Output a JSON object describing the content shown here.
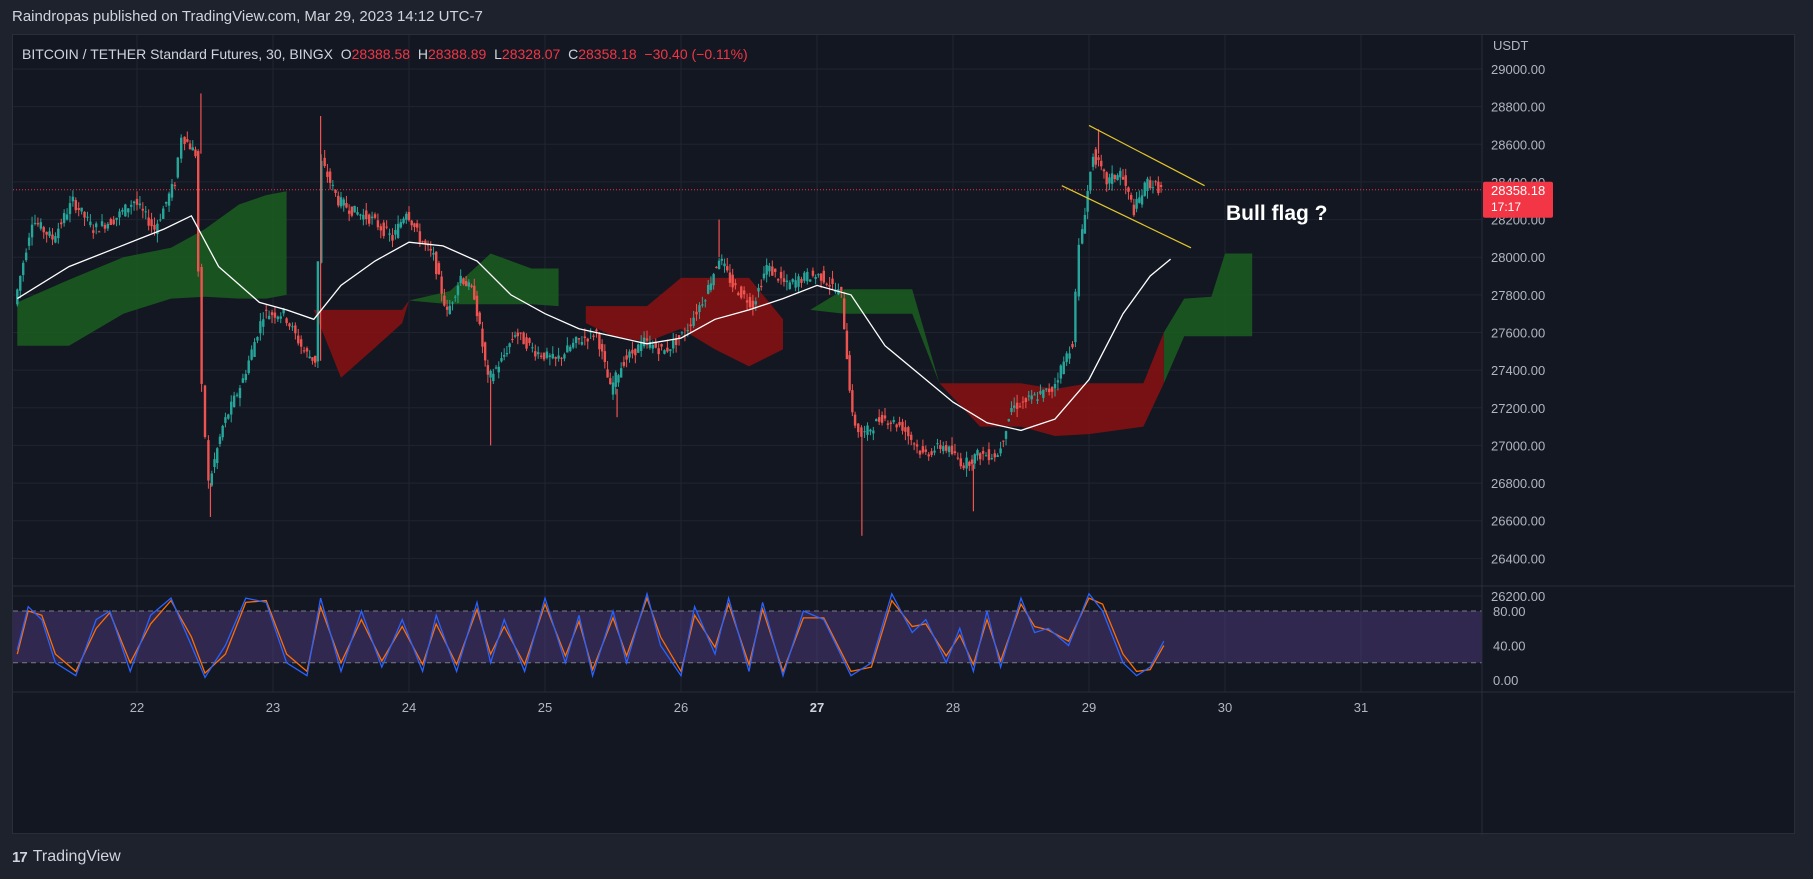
{
  "header": {
    "publisher_line": "Raindropas published on TradingView.com, Mar 29, 2023 14:12 UTC-7"
  },
  "legend": {
    "symbol": "BITCOIN / TETHER Standard Futures, 30, BINGX",
    "o_label": "O",
    "o_value": "28388.58",
    "h_label": "H",
    "h_value": "28388.89",
    "l_label": "L",
    "l_value": "28328.07",
    "c_label": "C",
    "c_value": "28358.18",
    "change": "−30.40 (−0.11%)"
  },
  "price_tag": {
    "value": "28358.18",
    "countdown": "17:17"
  },
  "annotation": "Bull flag ?",
  "footer": {
    "brand": "TradingView",
    "logo_glyph": "17"
  },
  "colors": {
    "up": "#26a69a",
    "down": "#ef5350",
    "cloud_bull": "#1b5e20",
    "cloud_bear": "#8b1111",
    "ma": "#ffffff",
    "flag": "#e3c72b",
    "stoch_k": "#2962ff",
    "stoch_d": "#ff6d00",
    "stoch_band": "#7e57c2",
    "price_tag": "#f23645"
  },
  "chart_data": {
    "type": "candlestick",
    "currency_label": "USDT",
    "x_ticks": [
      "22",
      "23",
      "24",
      "25",
      "26",
      "27",
      "28",
      "29",
      "30",
      "31"
    ],
    "bold_x_tick": "27",
    "y_ticks": [
      26200,
      26400,
      26600,
      26800,
      27000,
      27200,
      27400,
      27600,
      27800,
      28000,
      28200,
      28400,
      28600,
      28800,
      29000
    ],
    "ylim": [
      26000,
      29200
    ],
    "last_price": 28358.18,
    "price_path": [
      [
        21.12,
        27750
      ],
      [
        21.25,
        28200
      ],
      [
        21.4,
        28100
      ],
      [
        21.55,
        28300
      ],
      [
        21.7,
        28150
      ],
      [
        21.85,
        28200
      ],
      [
        22.0,
        28300
      ],
      [
        22.15,
        28150
      ],
      [
        22.3,
        28400
      ],
      [
        22.35,
        28650
      ],
      [
        22.45,
        28550
      ],
      [
        22.5,
        27300
      ],
      [
        22.55,
        26800
      ],
      [
        22.65,
        27100
      ],
      [
        22.8,
        27350
      ],
      [
        22.95,
        27700
      ],
      [
        23.1,
        27700
      ],
      [
        23.25,
        27500
      ],
      [
        23.33,
        27450
      ],
      [
        23.38,
        28500
      ],
      [
        23.5,
        28300
      ],
      [
        23.6,
        28250
      ],
      [
        23.75,
        28200
      ],
      [
        23.9,
        28100
      ],
      [
        24.0,
        28250
      ],
      [
        24.1,
        28100
      ],
      [
        24.2,
        28000
      ],
      [
        24.3,
        27700
      ],
      [
        24.4,
        27900
      ],
      [
        24.5,
        27800
      ],
      [
        24.6,
        27350
      ],
      [
        24.7,
        27450
      ],
      [
        24.8,
        27600
      ],
      [
        24.95,
        27500
      ],
      [
        25.1,
        27450
      ],
      [
        25.25,
        27550
      ],
      [
        25.4,
        27600
      ],
      [
        25.5,
        27300
      ],
      [
        25.6,
        27450
      ],
      [
        25.75,
        27550
      ],
      [
        25.9,
        27500
      ],
      [
        26.05,
        27600
      ],
      [
        26.2,
        27800
      ],
      [
        26.3,
        28000
      ],
      [
        26.4,
        27850
      ],
      [
        26.55,
        27750
      ],
      [
        26.65,
        27950
      ],
      [
        26.8,
        27850
      ],
      [
        26.95,
        27900
      ],
      [
        27.05,
        27900
      ],
      [
        27.2,
        27800
      ],
      [
        27.28,
        27150
      ],
      [
        27.35,
        27050
      ],
      [
        27.5,
        27150
      ],
      [
        27.65,
        27100
      ],
      [
        27.8,
        26950
      ],
      [
        27.95,
        27000
      ],
      [
        28.1,
        26900
      ],
      [
        28.2,
        26950
      ],
      [
        28.35,
        26950
      ],
      [
        28.45,
        27200
      ],
      [
        28.6,
        27250
      ],
      [
        28.75,
        27300
      ],
      [
        28.9,
        27550
      ],
      [
        28.95,
        28050
      ],
      [
        29.05,
        28550
      ],
      [
        29.15,
        28400
      ],
      [
        29.25,
        28450
      ],
      [
        29.35,
        28250
      ],
      [
        29.45,
        28400
      ],
      [
        29.55,
        28360
      ]
    ],
    "price_extremes": [
      {
        "x": 22.47,
        "y": 28870,
        "kind": "high"
      },
      {
        "x": 22.54,
        "y": 26620,
        "kind": "low"
      },
      {
        "x": 23.35,
        "y": 28750,
        "kind": "high"
      },
      {
        "x": 24.6,
        "y": 27000,
        "kind": "low"
      },
      {
        "x": 25.53,
        "y": 27150,
        "kind": "low"
      },
      {
        "x": 26.28,
        "y": 28200,
        "kind": "high"
      },
      {
        "x": 27.33,
        "y": 26520,
        "kind": "low"
      },
      {
        "x": 28.15,
        "y": 26650,
        "kind": "low"
      },
      {
        "x": 29.07,
        "y": 28680,
        "kind": "high"
      }
    ],
    "moving_average": [
      [
        21.12,
        27780
      ],
      [
        21.5,
        27950
      ],
      [
        21.85,
        28050
      ],
      [
        22.2,
        28150
      ],
      [
        22.4,
        28220
      ],
      [
        22.6,
        27950
      ],
      [
        22.9,
        27760
      ],
      [
        23.1,
        27720
      ],
      [
        23.3,
        27670
      ],
      [
        23.5,
        27850
      ],
      [
        23.75,
        27980
      ],
      [
        24.0,
        28080
      ],
      [
        24.25,
        28060
      ],
      [
        24.5,
        27980
      ],
      [
        24.75,
        27800
      ],
      [
        25.0,
        27700
      ],
      [
        25.25,
        27620
      ],
      [
        25.5,
        27580
      ],
      [
        25.75,
        27540
      ],
      [
        26.0,
        27570
      ],
      [
        26.25,
        27670
      ],
      [
        26.5,
        27720
      ],
      [
        26.75,
        27780
      ],
      [
        27.0,
        27850
      ],
      [
        27.25,
        27800
      ],
      [
        27.5,
        27530
      ],
      [
        27.75,
        27380
      ],
      [
        28.0,
        27230
      ],
      [
        28.25,
        27120
      ],
      [
        28.5,
        27080
      ],
      [
        28.75,
        27140
      ],
      [
        29.0,
        27350
      ],
      [
        29.25,
        27700
      ],
      [
        29.45,
        27900
      ],
      [
        29.6,
        27990
      ]
    ],
    "ichimoku_cloud": {
      "upper": [
        [
          21.12,
          27760
        ],
        [
          21.5,
          27880
        ],
        [
          21.9,
          28000
        ],
        [
          22.25,
          28050
        ],
        [
          22.5,
          28150
        ],
        [
          22.75,
          28280
        ],
        [
          22.95,
          28330
        ],
        [
          23.1,
          28350
        ],
        [
          23.3,
          27720
        ],
        [
          23.5,
          27720
        ],
        [
          23.75,
          27720
        ],
        [
          23.95,
          27720
        ],
        [
          24.0,
          27770
        ],
        [
          24.3,
          27820
        ],
        [
          24.6,
          28020
        ],
        [
          24.9,
          27940
        ],
        [
          25.1,
          27940
        ],
        [
          25.3,
          27740
        ],
        [
          25.5,
          27740
        ],
        [
          25.75,
          27740
        ],
        [
          26.0,
          27890
        ],
        [
          26.25,
          27890
        ],
        [
          26.5,
          27890
        ],
        [
          26.75,
          27670
        ],
        [
          26.95,
          27720
        ],
        [
          27.2,
          27830
        ],
        [
          27.45,
          27830
        ],
        [
          27.7,
          27830
        ],
        [
          27.9,
          27330
        ],
        [
          28.2,
          27330
        ],
        [
          28.5,
          27330
        ],
        [
          28.75,
          27300
        ],
        [
          29.0,
          27330
        ],
        [
          29.2,
          27330
        ],
        [
          29.4,
          27330
        ],
        [
          29.55,
          27600
        ],
        [
          29.7,
          27780
        ],
        [
          29.9,
          27790
        ],
        [
          30.0,
          28020
        ],
        [
          30.2,
          28020
        ]
      ],
      "lower": [
        [
          21.12,
          27530
        ],
        [
          21.5,
          27530
        ],
        [
          21.9,
          27700
        ],
        [
          22.25,
          27780
        ],
        [
          22.5,
          27790
        ],
        [
          22.75,
          27780
        ],
        [
          22.95,
          27780
        ],
        [
          23.1,
          27800
        ],
        [
          23.3,
          27720
        ],
        [
          23.5,
          27360
        ],
        [
          23.75,
          27520
        ],
        [
          23.95,
          27650
        ],
        [
          24.0,
          27770
        ],
        [
          24.3,
          27750
        ],
        [
          24.6,
          27750
        ],
        [
          24.9,
          27750
        ],
        [
          25.1,
          27740
        ],
        [
          25.3,
          27650
        ],
        [
          25.5,
          27580
        ],
        [
          25.75,
          27550
        ],
        [
          26.0,
          27620
        ],
        [
          26.25,
          27510
        ],
        [
          26.5,
          27420
        ],
        [
          26.75,
          27510
        ],
        [
          26.95,
          27720
        ],
        [
          27.2,
          27700
        ],
        [
          27.45,
          27700
        ],
        [
          27.7,
          27700
        ],
        [
          27.9,
          27330
        ],
        [
          28.2,
          27100
        ],
        [
          28.5,
          27100
        ],
        [
          28.75,
          27050
        ],
        [
          29.0,
          27060
        ],
        [
          29.2,
          27080
        ],
        [
          29.4,
          27100
        ],
        [
          29.55,
          27330
        ],
        [
          29.7,
          27580
        ],
        [
          29.9,
          27580
        ],
        [
          30.0,
          27580
        ],
        [
          30.2,
          27580
        ]
      ],
      "bull_segments": [
        [
          21.12,
          23.2
        ],
        [
          24.0,
          25.2
        ],
        [
          26.9,
          27.9
        ],
        [
          29.55,
          30.2
        ]
      ],
      "bear_segments": [
        [
          23.3,
          24.0
        ],
        [
          25.2,
          26.9
        ],
        [
          27.9,
          29.55
        ]
      ]
    },
    "bull_flag_lines": [
      {
        "from": [
          29.0,
          28700
        ],
        "to": [
          29.85,
          28380
        ]
      },
      {
        "from": [
          28.8,
          28380
        ],
        "to": [
          29.75,
          28050
        ]
      }
    ],
    "stochastic": {
      "y_ticks": [
        0,
        40,
        80
      ],
      "ylim": [
        -10,
        120
      ],
      "band": [
        20,
        80
      ],
      "k_path": [
        [
          21.12,
          35
        ],
        [
          21.2,
          85
        ],
        [
          21.3,
          70
        ],
        [
          21.4,
          20
        ],
        [
          21.55,
          5
        ],
        [
          21.7,
          70
        ],
        [
          21.8,
          80
        ],
        [
          21.95,
          10
        ],
        [
          22.1,
          75
        ],
        [
          22.25,
          95
        ],
        [
          22.4,
          40
        ],
        [
          22.5,
          3
        ],
        [
          22.65,
          40
        ],
        [
          22.8,
          95
        ],
        [
          22.95,
          90
        ],
        [
          23.1,
          20
        ],
        [
          23.25,
          5
        ],
        [
          23.35,
          95
        ],
        [
          23.5,
          10
        ],
        [
          23.65,
          80
        ],
        [
          23.8,
          15
        ],
        [
          23.95,
          70
        ],
        [
          24.1,
          10
        ],
        [
          24.2,
          75
        ],
        [
          24.35,
          10
        ],
        [
          24.5,
          90
        ],
        [
          24.6,
          20
        ],
        [
          24.7,
          70
        ],
        [
          24.85,
          10
        ],
        [
          25.0,
          95
        ],
        [
          25.15,
          20
        ],
        [
          25.25,
          75
        ],
        [
          25.35,
          5
        ],
        [
          25.5,
          80
        ],
        [
          25.6,
          20
        ],
        [
          25.75,
          100
        ],
        [
          25.85,
          40
        ],
        [
          26.0,
          5
        ],
        [
          26.1,
          85
        ],
        [
          26.25,
          30
        ],
        [
          26.35,
          95
        ],
        [
          26.5,
          10
        ],
        [
          26.6,
          90
        ],
        [
          26.75,
          5
        ],
        [
          26.9,
          80
        ],
        [
          27.05,
          70
        ],
        [
          27.25,
          5
        ],
        [
          27.4,
          20
        ],
        [
          27.55,
          100
        ],
        [
          27.7,
          55
        ],
        [
          27.8,
          70
        ],
        [
          27.95,
          20
        ],
        [
          28.05,
          60
        ],
        [
          28.15,
          10
        ],
        [
          28.25,
          80
        ],
        [
          28.35,
          15
        ],
        [
          28.5,
          95
        ],
        [
          28.6,
          55
        ],
        [
          28.7,
          60
        ],
        [
          28.85,
          40
        ],
        [
          29.0,
          100
        ],
        [
          29.1,
          80
        ],
        [
          29.25,
          20
        ],
        [
          29.35,
          5
        ],
        [
          29.45,
          15
        ],
        [
          29.55,
          45
        ]
      ],
      "d_path": [
        [
          21.12,
          30
        ],
        [
          21.2,
          80
        ],
        [
          21.3,
          75
        ],
        [
          21.4,
          30
        ],
        [
          21.55,
          10
        ],
        [
          21.7,
          60
        ],
        [
          21.8,
          78
        ],
        [
          21.95,
          20
        ],
        [
          22.1,
          65
        ],
        [
          22.25,
          92
        ],
        [
          22.4,
          50
        ],
        [
          22.5,
          8
        ],
        [
          22.65,
          30
        ],
        [
          22.8,
          90
        ],
        [
          22.95,
          92
        ],
        [
          23.1,
          30
        ],
        [
          23.25,
          10
        ],
        [
          23.35,
          85
        ],
        [
          23.5,
          20
        ],
        [
          23.65,
          70
        ],
        [
          23.8,
          22
        ],
        [
          23.95,
          62
        ],
        [
          24.1,
          18
        ],
        [
          24.2,
          65
        ],
        [
          24.35,
          18
        ],
        [
          24.5,
          82
        ],
        [
          24.6,
          30
        ],
        [
          24.7,
          62
        ],
        [
          24.85,
          18
        ],
        [
          25.0,
          88
        ],
        [
          25.15,
          28
        ],
        [
          25.25,
          68
        ],
        [
          25.35,
          12
        ],
        [
          25.5,
          72
        ],
        [
          25.6,
          28
        ],
        [
          25.75,
          95
        ],
        [
          25.85,
          50
        ],
        [
          26.0,
          10
        ],
        [
          26.1,
          75
        ],
        [
          26.25,
          38
        ],
        [
          26.35,
          88
        ],
        [
          26.5,
          18
        ],
        [
          26.6,
          82
        ],
        [
          26.75,
          10
        ],
        [
          26.9,
          72
        ],
        [
          27.05,
          72
        ],
        [
          27.25,
          10
        ],
        [
          27.4,
          15
        ],
        [
          27.55,
          92
        ],
        [
          27.7,
          62
        ],
        [
          27.8,
          65
        ],
        [
          27.95,
          28
        ],
        [
          28.05,
          52
        ],
        [
          28.15,
          18
        ],
        [
          28.25,
          70
        ],
        [
          28.35,
          22
        ],
        [
          28.5,
          88
        ],
        [
          28.6,
          62
        ],
        [
          28.7,
          58
        ],
        [
          28.85,
          45
        ],
        [
          29.0,
          95
        ],
        [
          29.1,
          88
        ],
        [
          29.25,
          30
        ],
        [
          29.35,
          10
        ],
        [
          29.45,
          12
        ],
        [
          29.55,
          40
        ]
      ]
    }
  }
}
